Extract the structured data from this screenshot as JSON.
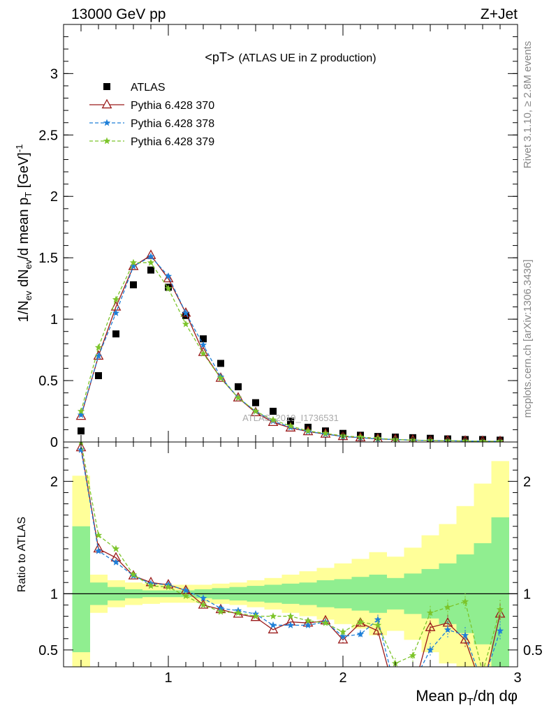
{
  "header": {
    "left": "13000 GeV pp",
    "right": "Z+Jet"
  },
  "side_labels": {
    "rivet": "Rivet 3.1.10, ≥ 2.8M events",
    "mcplots": "mcplots.cern.ch [arXiv:1306.3436]"
  },
  "watermark": "ATLAS_2019_I1736531",
  "chart_data": [
    {
      "type": "scatter",
      "panel": "main",
      "title": "<pT>",
      "subtitle": "(ATLAS UE in Z production)",
      "xlabel": "Mean pT/dη dφ",
      "ylabel": "1/Nev dNev/d mean pT [GeV]-1",
      "xlim": [
        0.4,
        3.0
      ],
      "ylim": [
        0,
        3.4
      ],
      "yticks": [
        0,
        0.5,
        1,
        1.5,
        2,
        2.5,
        3
      ],
      "ytick_labels": [
        "0",
        "0.5",
        "1",
        "1.5",
        "2",
        "2.5",
        "3"
      ],
      "x": [
        0.5,
        0.6,
        0.7,
        0.8,
        0.9,
        1.0,
        1.1,
        1.2,
        1.3,
        1.4,
        1.5,
        1.6,
        1.7,
        1.8,
        1.9,
        2.0,
        2.1,
        2.2,
        2.3,
        2.4,
        2.5,
        2.6,
        2.7,
        2.8,
        2.9
      ],
      "legend_position": "top-left",
      "series": [
        {
          "name": "ATLAS",
          "marker": "square",
          "color": "#000000",
          "values": [
            0.09,
            0.54,
            0.88,
            1.28,
            1.4,
            1.26,
            1.03,
            0.84,
            0.64,
            0.45,
            0.32,
            0.25,
            0.17,
            0.12,
            0.09,
            0.07,
            0.055,
            0.045,
            0.04,
            0.035,
            0.03,
            0.025,
            0.02,
            0.02,
            0.015
          ]
        },
        {
          "name": "Pythia 6.428 370",
          "marker": "triangle",
          "color": "#9a1a1a",
          "dash": "solid",
          "values": [
            0.21,
            0.7,
            1.1,
            1.43,
            1.52,
            1.33,
            1.05,
            0.73,
            0.52,
            0.36,
            0.24,
            0.16,
            0.115,
            0.085,
            0.065,
            0.045,
            0.035,
            0.025,
            0.02,
            0.015,
            0.012,
            0.01,
            0.008,
            0.006,
            0.005
          ]
        },
        {
          "name": "Pythia 6.428 378",
          "marker": "star",
          "color": "#1e7fd8",
          "dash": "dashed",
          "values": [
            0.22,
            0.7,
            1.05,
            1.43,
            1.51,
            1.35,
            1.05,
            0.79,
            0.53,
            0.36,
            0.25,
            0.17,
            0.12,
            0.085,
            0.065,
            0.045,
            0.035,
            0.025,
            0.02,
            0.015,
            0.012,
            0.01,
            0.008,
            0.006,
            0.005
          ]
        },
        {
          "name": "Pythia 6.428 379",
          "marker": "star",
          "color": "#7cc42a",
          "dash": "dashed",
          "values": [
            0.25,
            0.77,
            1.16,
            1.46,
            1.46,
            1.25,
            0.96,
            0.72,
            0.52,
            0.36,
            0.25,
            0.18,
            0.13,
            0.09,
            0.07,
            0.05,
            0.04,
            0.03,
            0.02,
            0.015,
            0.012,
            0.01,
            0.008,
            0.006,
            0.005
          ]
        }
      ]
    },
    {
      "type": "line",
      "panel": "ratio",
      "ylabel": "Ratio to ATLAS",
      "xlabel": "Mean pT/dη dφ",
      "xlim": [
        0.4,
        3.0
      ],
      "ylim": [
        0.35,
        2.35
      ],
      "yticks": [
        0.5,
        1,
        2
      ],
      "ytick_labels": [
        "0.5",
        "1",
        "2"
      ],
      "xticks": [
        1,
        2,
        3
      ],
      "xtick_labels": [
        "1",
        "2",
        "3"
      ],
      "band_x_edges": [
        0.45,
        0.55,
        0.65,
        0.75,
        0.85,
        0.95,
        1.05,
        1.15,
        1.25,
        1.35,
        1.45,
        1.55,
        1.65,
        1.75,
        1.85,
        1.95,
        2.05,
        2.15,
        2.25,
        2.35,
        2.45,
        2.55,
        2.65,
        2.75,
        2.85,
        2.95
      ],
      "stat_band": {
        "color": "#90ee90",
        "upper": [
          1.6,
          1.1,
          1.06,
          1.04,
          1.03,
          1.03,
          1.03,
          1.04,
          1.05,
          1.06,
          1.07,
          1.08,
          1.09,
          1.1,
          1.12,
          1.13,
          1.15,
          1.17,
          1.14,
          1.18,
          1.22,
          1.27,
          1.35,
          1.45,
          1.68
        ],
        "lower": [
          0.48,
          0.9,
          0.94,
          0.96,
          0.97,
          0.97,
          0.97,
          0.96,
          0.95,
          0.94,
          0.93,
          0.92,
          0.91,
          0.9,
          0.88,
          0.87,
          0.85,
          0.83,
          0.86,
          0.82,
          0.78,
          0.73,
          0.65,
          0.55,
          0.32
        ]
      },
      "syst_band": {
        "color": "#ffff99",
        "upper": [
          2.05,
          1.17,
          1.12,
          1.1,
          1.09,
          1.08,
          1.08,
          1.08,
          1.09,
          1.1,
          1.12,
          1.14,
          1.17,
          1.2,
          1.23,
          1.27,
          1.31,
          1.37,
          1.33,
          1.41,
          1.52,
          1.62,
          1.78,
          1.98,
          2.18
        ]
      },
      "x": [
        0.5,
        0.6,
        0.7,
        0.8,
        0.9,
        1.0,
        1.1,
        1.2,
        1.3,
        1.4,
        1.5,
        1.6,
        1.7,
        1.8,
        1.9,
        2.0,
        2.1,
        2.2,
        2.3,
        2.4,
        2.5,
        2.6,
        2.7,
        2.8,
        2.9
      ],
      "series": [
        {
          "name": "Pythia 6.428 370",
          "color": "#9a1a1a",
          "values": [
            2.3,
            1.4,
            1.32,
            1.16,
            1.1,
            1.08,
            1.03,
            0.9,
            0.86,
            0.82,
            0.79,
            0.68,
            0.75,
            0.74,
            0.76,
            0.59,
            0.74,
            0.67,
            0.1,
            0.12,
            0.7,
            0.74,
            0.59,
            0.15,
            0.82
          ]
        },
        {
          "name": "Pythia 6.428 378",
          "color": "#1e7fd8",
          "values": [
            2.28,
            1.38,
            1.28,
            1.16,
            1.09,
            1.08,
            1.03,
            0.96,
            0.87,
            0.85,
            0.82,
            0.72,
            0.72,
            0.72,
            0.75,
            0.62,
            0.64,
            0.77,
            0.15,
            0.2,
            0.5,
            0.68,
            0.63,
            0.2,
            0.67
          ]
        },
        {
          "name": "Pythia 6.428 379",
          "color": "#7cc42a",
          "values": [
            2.35,
            1.52,
            1.4,
            1.17,
            1.07,
            1.06,
            0.98,
            0.9,
            0.84,
            0.83,
            0.8,
            0.8,
            0.8,
            0.76,
            0.74,
            0.66,
            0.75,
            0.72,
            0.38,
            0.45,
            0.83,
            0.88,
            0.93,
            0.3,
            0.86
          ]
        }
      ]
    }
  ]
}
